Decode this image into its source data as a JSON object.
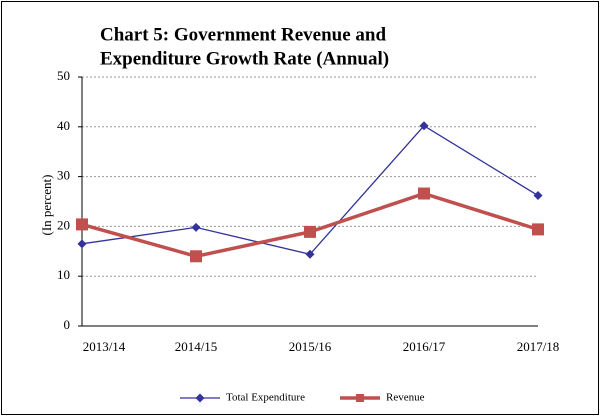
{
  "chart_data": {
    "type": "line",
    "title": [
      "Chart 5: Government Revenue and",
      "Expenditure Growth Rate (Annual)"
    ],
    "y_label": "(In percent)",
    "categories": [
      "2013/14",
      "2014/15",
      "2015/16",
      "2016/17",
      "2017/18"
    ],
    "series": [
      {
        "name": "Total Expenditure",
        "color": "#333399",
        "marker": "diamond",
        "values": [
          16.5,
          19.8,
          14.4,
          40.2,
          26.2
        ]
      },
      {
        "name": "Revenue",
        "color": "#c0504d",
        "marker": "square",
        "values": [
          20.4,
          14.0,
          18.9,
          26.6,
          19.4
        ]
      }
    ],
    "ylim": [
      0,
      50
    ],
    "yticks": [
      0,
      10,
      20,
      30,
      40,
      50
    ],
    "grid": true,
    "legend": "bottom"
  }
}
